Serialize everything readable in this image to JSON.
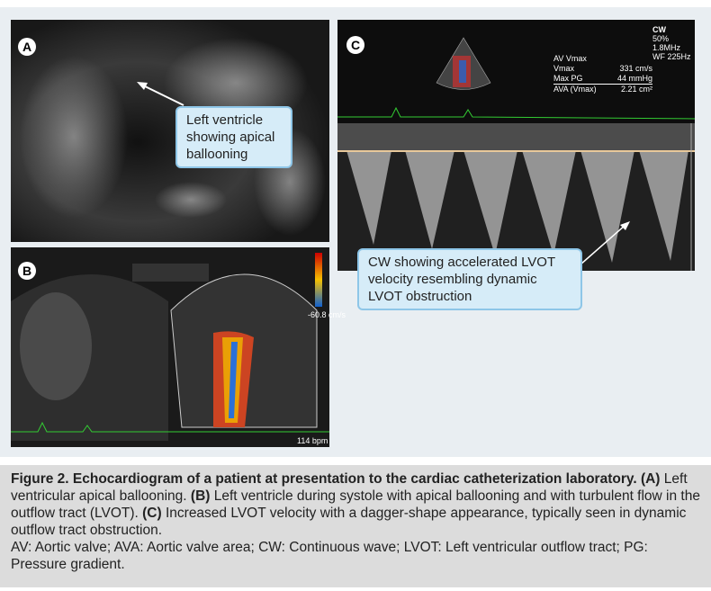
{
  "panels": [
    {
      "label": "A",
      "callout": "Left ventricle showing apical ballooning"
    },
    {
      "label": "B",
      "overlay": [
        "-60.8 cm/s",
        "114 bpm"
      ]
    },
    {
      "label": "C",
      "callout": "CW showing accelerated LVOT velocity resembling dynamic LVOT obstruction",
      "overlay": [
        "CW",
        "50%",
        "1.8MHz",
        "WF 225Hz"
      ],
      "measurements": [
        {
          "name": "AV Vmax",
          "value": ""
        },
        {
          "name": "Vmax",
          "value": "331 cm/s"
        },
        {
          "name": "Max PG",
          "value": "44 mmHg"
        },
        {
          "name": "AVA (Vmax)",
          "value": "2.21 cm²"
        }
      ]
    }
  ],
  "caption": {
    "segments": [
      {
        "text": "Figure 2. Echocardiogram of a patient at presentation to the cardiac catheterization laboratory. (A)",
        "bold": true
      },
      {
        "text": " Left ventricular apical ballooning. ",
        "bold": false
      },
      {
        "text": "(B)",
        "bold": true
      },
      {
        "text": " Left ventricle during systole with apical ballooning and with turbulent flow in the outflow tract (LVOT). ",
        "bold": false
      },
      {
        "text": "(C)",
        "bold": true
      },
      {
        "text": " Increased LVOT velocity with a dagger-shape appearance, typically seen in dynamic outflow tract obstruction.",
        "bold": false
      }
    ],
    "abbreviations": "AV: Aortic valve; AVA: Aortic valve area; CW: Continuous wave; LVOT: Left ventricular outflow tract; PG: Pressure gradient."
  }
}
